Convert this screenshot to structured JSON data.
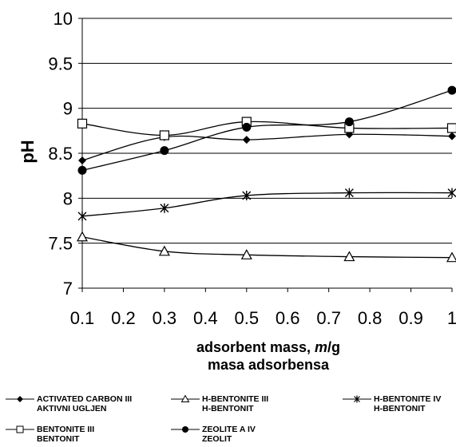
{
  "chart_data": {
    "type": "line",
    "ylabel": "pH",
    "xlabel_line1_prefix": "adsorbent mass, ",
    "xlabel_line1_var": "m",
    "xlabel_line1_unit": "/g",
    "xlabel_line2": "masa adsorbensa",
    "xlim": [
      0.1,
      1
    ],
    "ylim": [
      7,
      10
    ],
    "x_ticks": [
      "0.1",
      "0.2",
      "0.3",
      "0.4",
      "0.5",
      "0.6",
      "0.7",
      "0.8",
      "0.9",
      "1"
    ],
    "y_ticks": [
      "7",
      "7.5",
      "8",
      "8.5",
      "9",
      "9.5",
      "10"
    ],
    "y_gridlines": true,
    "legend_position": "bottom",
    "series": [
      {
        "name_line1": "ACTIVATED CARBON  III",
        "name_line2": "AKTIVNI UGLJEN",
        "marker": "diamond-filled",
        "x": [
          0.1,
          0.3,
          0.5,
          0.75,
          1
        ],
        "y": [
          8.42,
          8.68,
          8.65,
          8.71,
          8.69
        ]
      },
      {
        "name_line1": "H-BENTONITE  III",
        "name_line2": "H-BENTONIT",
        "marker": "triangle-open",
        "x": [
          0.1,
          0.3,
          0.5,
          0.75,
          1
        ],
        "y": [
          7.57,
          7.41,
          7.37,
          7.35,
          7.34
        ]
      },
      {
        "name_line1": "H-BENTONITE  IV",
        "name_line2": "H-BENTONIT",
        "marker": "asterisk",
        "x": [
          0.1,
          0.3,
          0.5,
          0.75,
          1
        ],
        "y": [
          7.8,
          7.89,
          8.03,
          8.06,
          8.06
        ]
      },
      {
        "name_line1": "BENTONITE III",
        "name_line2": "BENTONIT",
        "marker": "square-open",
        "x": [
          0.1,
          0.3,
          0.5,
          0.75,
          1
        ],
        "y": [
          8.83,
          8.7,
          8.85,
          8.78,
          8.78
        ]
      },
      {
        "name_line1": "ZEOLITE A  IV",
        "name_line2": "ZEOLIT",
        "marker": "circle-filled",
        "x": [
          0.1,
          0.3,
          0.5,
          0.75,
          1
        ],
        "y": [
          8.31,
          8.53,
          8.79,
          8.85,
          9.2
        ]
      }
    ]
  }
}
